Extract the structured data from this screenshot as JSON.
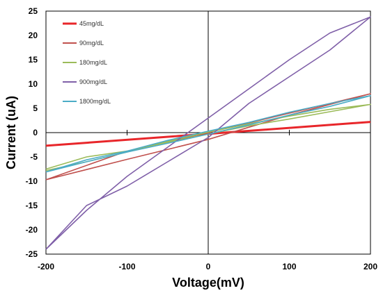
{
  "chart_data": {
    "type": "line",
    "title": "",
    "xlabel": "Voltage(mV)",
    "ylabel": "Current (uA)",
    "xlim": [
      -200,
      200
    ],
    "ylim": [
      -25,
      25
    ],
    "xticks": [
      "-200",
      "-100",
      "0",
      "100",
      "200"
    ],
    "yticks": [
      "25",
      "20",
      "15",
      "10",
      "5",
      "0",
      "-5",
      "-10",
      "-15",
      "-20",
      "-25"
    ],
    "grid": false,
    "legend_position": "top-left",
    "series": [
      {
        "name": "45mg/dL",
        "color": "#e8262a",
        "x": [
          -200,
          200
        ],
        "y": [
          -2.7,
          2.2
        ]
      },
      {
        "name": "90mg/dL",
        "color": "#c0504d",
        "x": [
          -200,
          -100,
          0,
          100,
          200,
          100,
          0,
          -100,
          -200
        ],
        "y": [
          -9.7,
          -3.8,
          0.0,
          4.0,
          8.0,
          3.6,
          -1.4,
          -5.5,
          -9.7
        ]
      },
      {
        "name": "180mg/dL",
        "color": "#9bbb59",
        "x": [
          -200,
          -150,
          -100,
          -50,
          0,
          50,
          100,
          150,
          200,
          150,
          100,
          50,
          0,
          -50,
          -100,
          -150,
          -200
        ],
        "y": [
          -7.5,
          -5.0,
          -3.8,
          -2.0,
          -0.3,
          1.4,
          2.8,
          4.3,
          5.8,
          4.8,
          3.4,
          1.8,
          0.1,
          -1.8,
          -4.0,
          -6.0,
          -7.8
        ]
      },
      {
        "name": "900mg/dL",
        "color": "#7f5fa8",
        "x": [
          -200,
          -150,
          -100,
          -50,
          0,
          50,
          100,
          150,
          200,
          150,
          100,
          50,
          0,
          -50,
          -100,
          -150,
          -200
        ],
        "y": [
          -24.0,
          -15.0,
          -11.0,
          -6.0,
          -1.0,
          6.0,
          11.5,
          17.0,
          23.8,
          20.5,
          15.0,
          9.0,
          3.0,
          -3.0,
          -9.0,
          -16.0,
          -24.0
        ]
      },
      {
        "name": "1800mg/dL",
        "color": "#4bacc6",
        "x": [
          -200,
          -150,
          -100,
          -50,
          0,
          50,
          100,
          150,
          200,
          150,
          100,
          50,
          0,
          -50,
          -100,
          -150,
          -200
        ],
        "y": [
          -8.1,
          -5.6,
          -3.8,
          -1.6,
          0.3,
          2.1,
          4.2,
          6.0,
          7.6,
          5.4,
          3.6,
          1.6,
          -0.3,
          -2.2,
          -4.0,
          -6.0,
          -8.1
        ]
      }
    ]
  }
}
